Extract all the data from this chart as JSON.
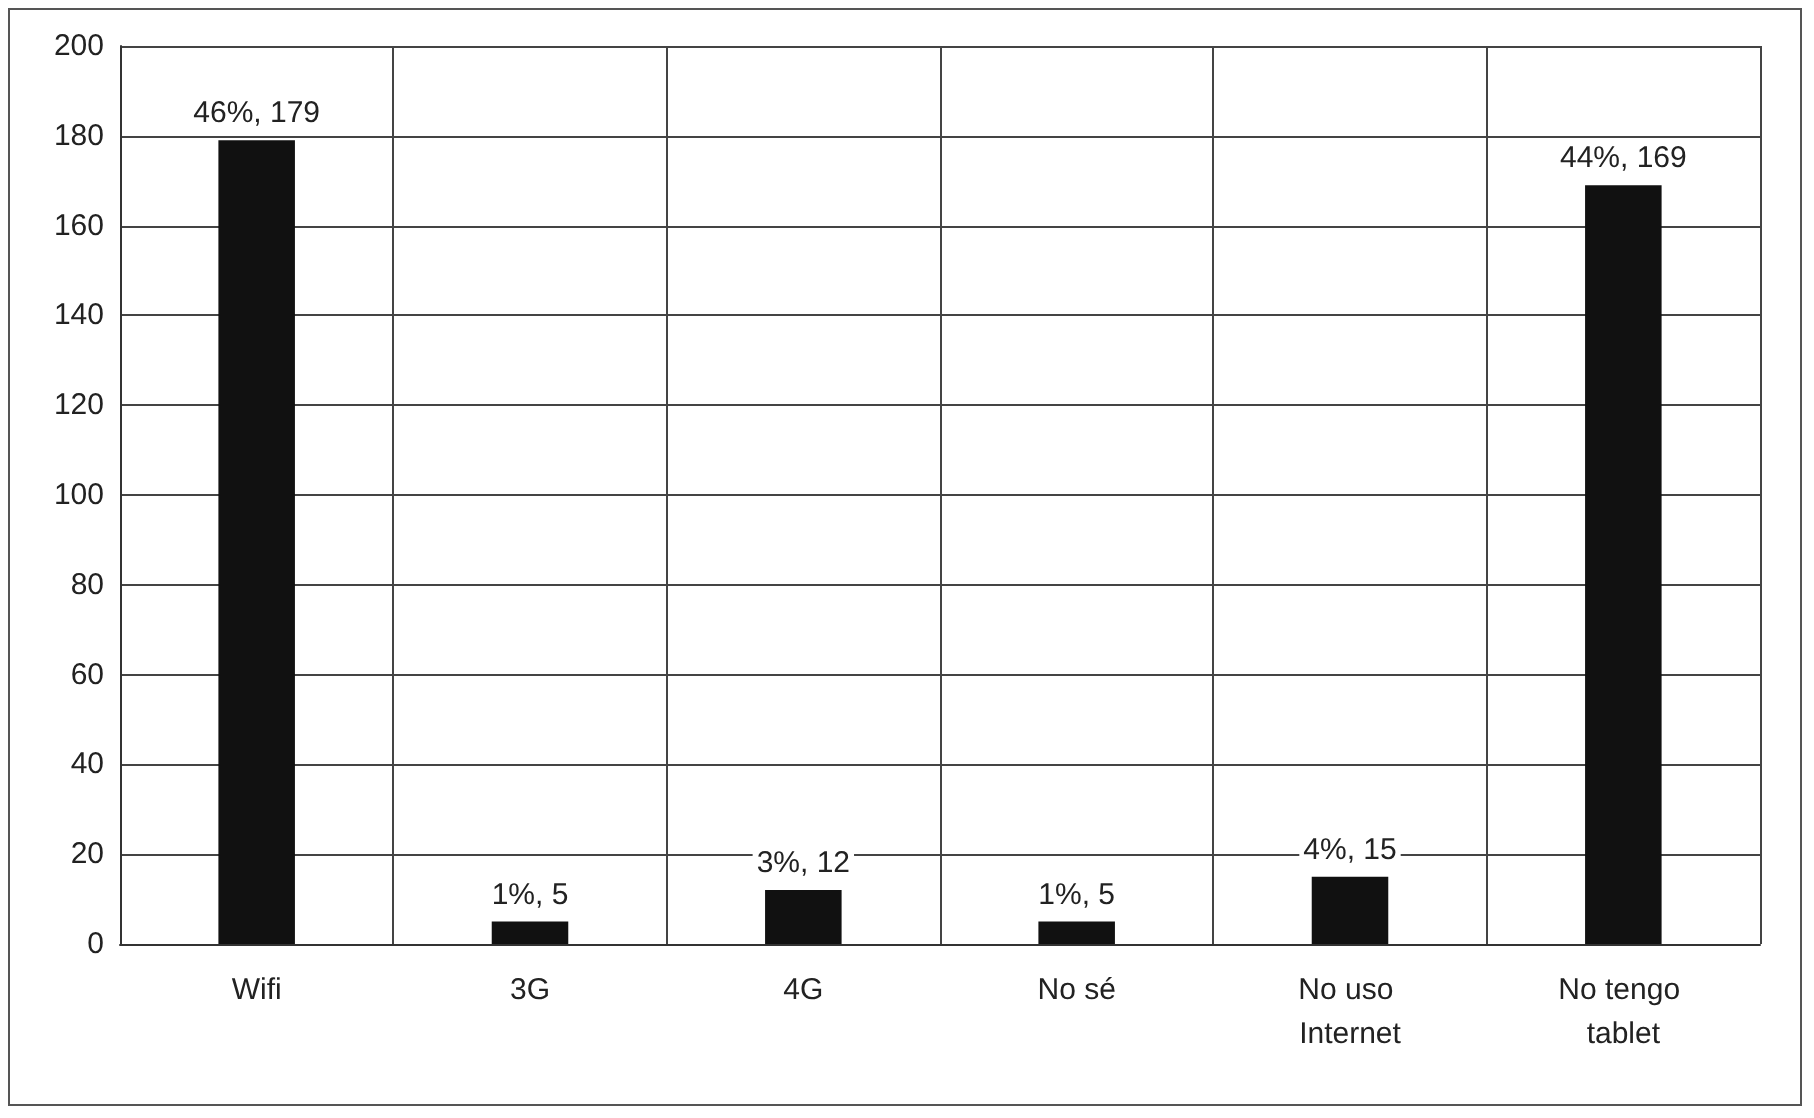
{
  "chart_data": {
    "type": "bar",
    "categories": [
      "Wifi",
      "3G",
      "4G",
      "No sé",
      "No uso Internet",
      "No tengo tablet"
    ],
    "values": [
      179,
      5,
      12,
      5,
      15,
      169
    ],
    "value_labels": [
      "46%, 179",
      "1%, 5",
      "3%, 12",
      "1%, 5",
      "4%, 15",
      "44%, 169"
    ],
    "color": "#111111",
    "ylim": [
      0,
      200
    ],
    "yticks": [
      0,
      20,
      40,
      60,
      80,
      100,
      120,
      140,
      160,
      180,
      200
    ],
    "grid": true
  }
}
